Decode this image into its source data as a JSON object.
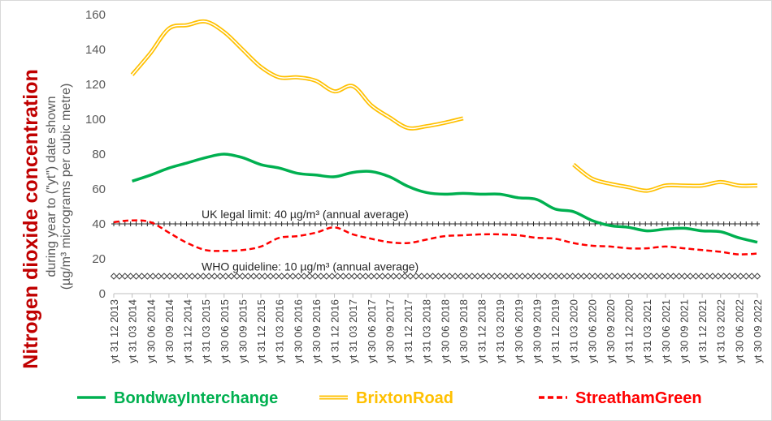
{
  "chart_data": {
    "type": "line",
    "title": "",
    "ylabel": "Nitrogen dioxide concentration",
    "ylabel_sub1": "during year to (\"yt\") date shown",
    "ylabel_sub2": "(µg/m³ micrograms per cubic metre)",
    "ylim": [
      0,
      160
    ],
    "yticks": [
      0,
      20,
      40,
      60,
      80,
      100,
      120,
      140,
      160
    ],
    "grid": false,
    "legend_position": "bottom",
    "x": [
      "yt 31 12 2013",
      "yt 31 03 2014",
      "yt 30 06 2014",
      "yt 30 09 2014",
      "yt 31 12 2014",
      "yt 31 03 2015",
      "yt 30 06 2015",
      "yt 30 09 2015",
      "yt 31 12 2015",
      "yt 31 03 2016",
      "yt 30 06 2016",
      "yt 30 09 2016",
      "yt 31 12 2016",
      "yt 31 03 2017",
      "yt 30 06 2017",
      "yt 30 09 2017",
      "yt 31 12 2017",
      "yt 31 03 2018",
      "yt 30 06 2018",
      "yt 30 09 2018",
      "yt 31 12 2018",
      "yt 31 03 2019",
      "yt 30 06 2019",
      "yt 30 09 2019",
      "yt 31 12 2019",
      "yt 31 03 2020",
      "yt 30 06 2020",
      "yt 30 09 2020",
      "yt 31 12 2020",
      "yt 31 03 2021",
      "yt 30 06 2021",
      "yt 30 09 2021",
      "yt 31 12 2021",
      "yt 31 03 2022",
      "yt 30 06 2022",
      "yt 30 09 2022"
    ],
    "series": [
      {
        "name": "BondwayInterchange",
        "color": "#00b050",
        "style": "solid",
        "values": [
          null,
          64.5,
          68,
          72,
          75,
          78,
          80,
          78,
          74,
          72,
          69,
          68,
          67,
          69.5,
          70,
          67,
          61.5,
          58,
          57,
          57.5,
          57,
          57,
          55,
          54,
          48.5,
          47,
          42,
          39,
          38,
          36,
          37,
          37.5,
          36,
          35.5,
          32,
          29.5
        ]
      },
      {
        "name": "BrixtonRoad",
        "color": "#ffc000",
        "style": "double",
        "values": [
          null,
          125.5,
          138,
          152,
          154,
          156,
          150,
          140,
          130,
          124,
          124,
          122,
          116,
          119,
          108,
          101,
          95,
          96,
          98,
          100.5,
          null,
          null,
          null,
          null,
          null,
          74,
          66,
          63,
          61,
          59,
          62,
          62,
          62,
          64,
          62,
          62
        ]
      },
      {
        "name": "StreathamGreen",
        "color": "#ff0000",
        "style": "dashed",
        "values": [
          41,
          42,
          41,
          35,
          29,
          25,
          24.5,
          25,
          27,
          32,
          33,
          35,
          38,
          34,
          31.5,
          29.5,
          29,
          31,
          33,
          33.5,
          34,
          34,
          33.5,
          32,
          31.5,
          29,
          27.5,
          27,
          26,
          26,
          27,
          26,
          25,
          24,
          22.5,
          23
        ]
      }
    ],
    "reference_lines": [
      {
        "name": "uk-limit",
        "value": 40,
        "label": "UK legal limit:  40 µg/m³ (annual average)",
        "marker": "plus"
      },
      {
        "name": "who-guideline",
        "value": 10,
        "label": "WHO guideline:  10 µg/m³ (annual average)",
        "marker": "diamond"
      }
    ]
  }
}
